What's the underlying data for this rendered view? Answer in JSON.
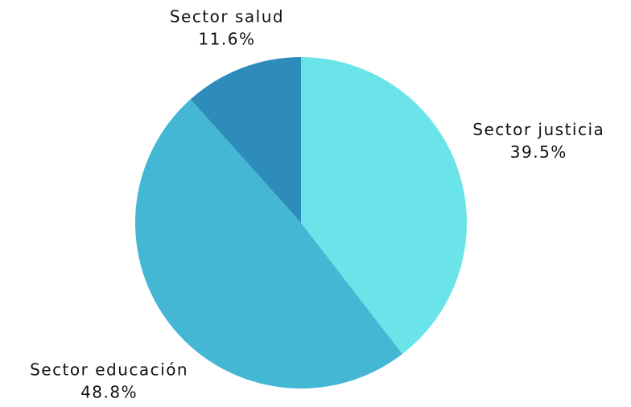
{
  "chart_data": {
    "type": "pie",
    "categories": [
      "Sector justicia",
      "Sector educación",
      "Sector salud"
    ],
    "values": [
      39.5,
      48.8,
      11.6
    ],
    "value_labels": [
      "39.5%",
      "48.8%",
      "11.6%"
    ],
    "colors": [
      "#6ae4e8",
      "#43b7d4",
      "#2e8cba"
    ]
  }
}
